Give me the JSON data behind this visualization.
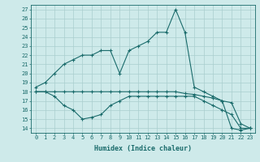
{
  "xlabel": "Humidex (Indice chaleur)",
  "ylabel": "",
  "background_color": "#ceeaea",
  "grid_color": "#aacece",
  "line_color": "#1a6b6b",
  "xlim": [
    -0.5,
    23.5
  ],
  "ylim": [
    13.5,
    27.5
  ],
  "yticks": [
    14,
    15,
    16,
    17,
    18,
    19,
    20,
    21,
    22,
    23,
    24,
    25,
    26,
    27
  ],
  "xticks": [
    0,
    1,
    2,
    3,
    4,
    5,
    6,
    7,
    8,
    9,
    10,
    11,
    12,
    13,
    14,
    15,
    16,
    17,
    18,
    19,
    20,
    21,
    22,
    23
  ],
  "series": [
    {
      "x": [
        0,
        1,
        2,
        3,
        4,
        5,
        6,
        7,
        8,
        9,
        10,
        11,
        12,
        13,
        14,
        15,
        16,
        17,
        18,
        19,
        20,
        21,
        22,
        23
      ],
      "y": [
        18.5,
        19.0,
        20.0,
        21.0,
        21.5,
        22.0,
        22.0,
        22.5,
        22.5,
        20.0,
        22.5,
        23.0,
        23.5,
        24.5,
        24.5,
        27.0,
        24.5,
        18.5,
        18.0,
        17.5,
        17.0,
        14.0,
        13.8,
        14.0
      ]
    },
    {
      "x": [
        0,
        1,
        2,
        3,
        4,
        5,
        6,
        7,
        8,
        9,
        10,
        11,
        12,
        13,
        14,
        15,
        16,
        17,
        18,
        19,
        20,
        21,
        22,
        23
      ],
      "y": [
        18.0,
        18.0,
        18.0,
        18.0,
        18.0,
        18.0,
        18.0,
        18.0,
        18.0,
        18.0,
        18.0,
        18.0,
        18.0,
        18.0,
        18.0,
        18.0,
        17.8,
        17.7,
        17.5,
        17.3,
        17.0,
        16.8,
        14.5,
        14.0
      ]
    },
    {
      "x": [
        0,
        1,
        2,
        3,
        4,
        5,
        6,
        7,
        8,
        9,
        10,
        11,
        12,
        13,
        14,
        15,
        16,
        17,
        18,
        19,
        20,
        21,
        22,
        23
      ],
      "y": [
        18.0,
        18.0,
        17.5,
        16.5,
        16.0,
        15.0,
        15.2,
        15.5,
        16.5,
        17.0,
        17.5,
        17.5,
        17.5,
        17.5,
        17.5,
        17.5,
        17.5,
        17.5,
        17.0,
        16.5,
        16.0,
        15.5,
        14.0,
        14.0
      ]
    }
  ]
}
